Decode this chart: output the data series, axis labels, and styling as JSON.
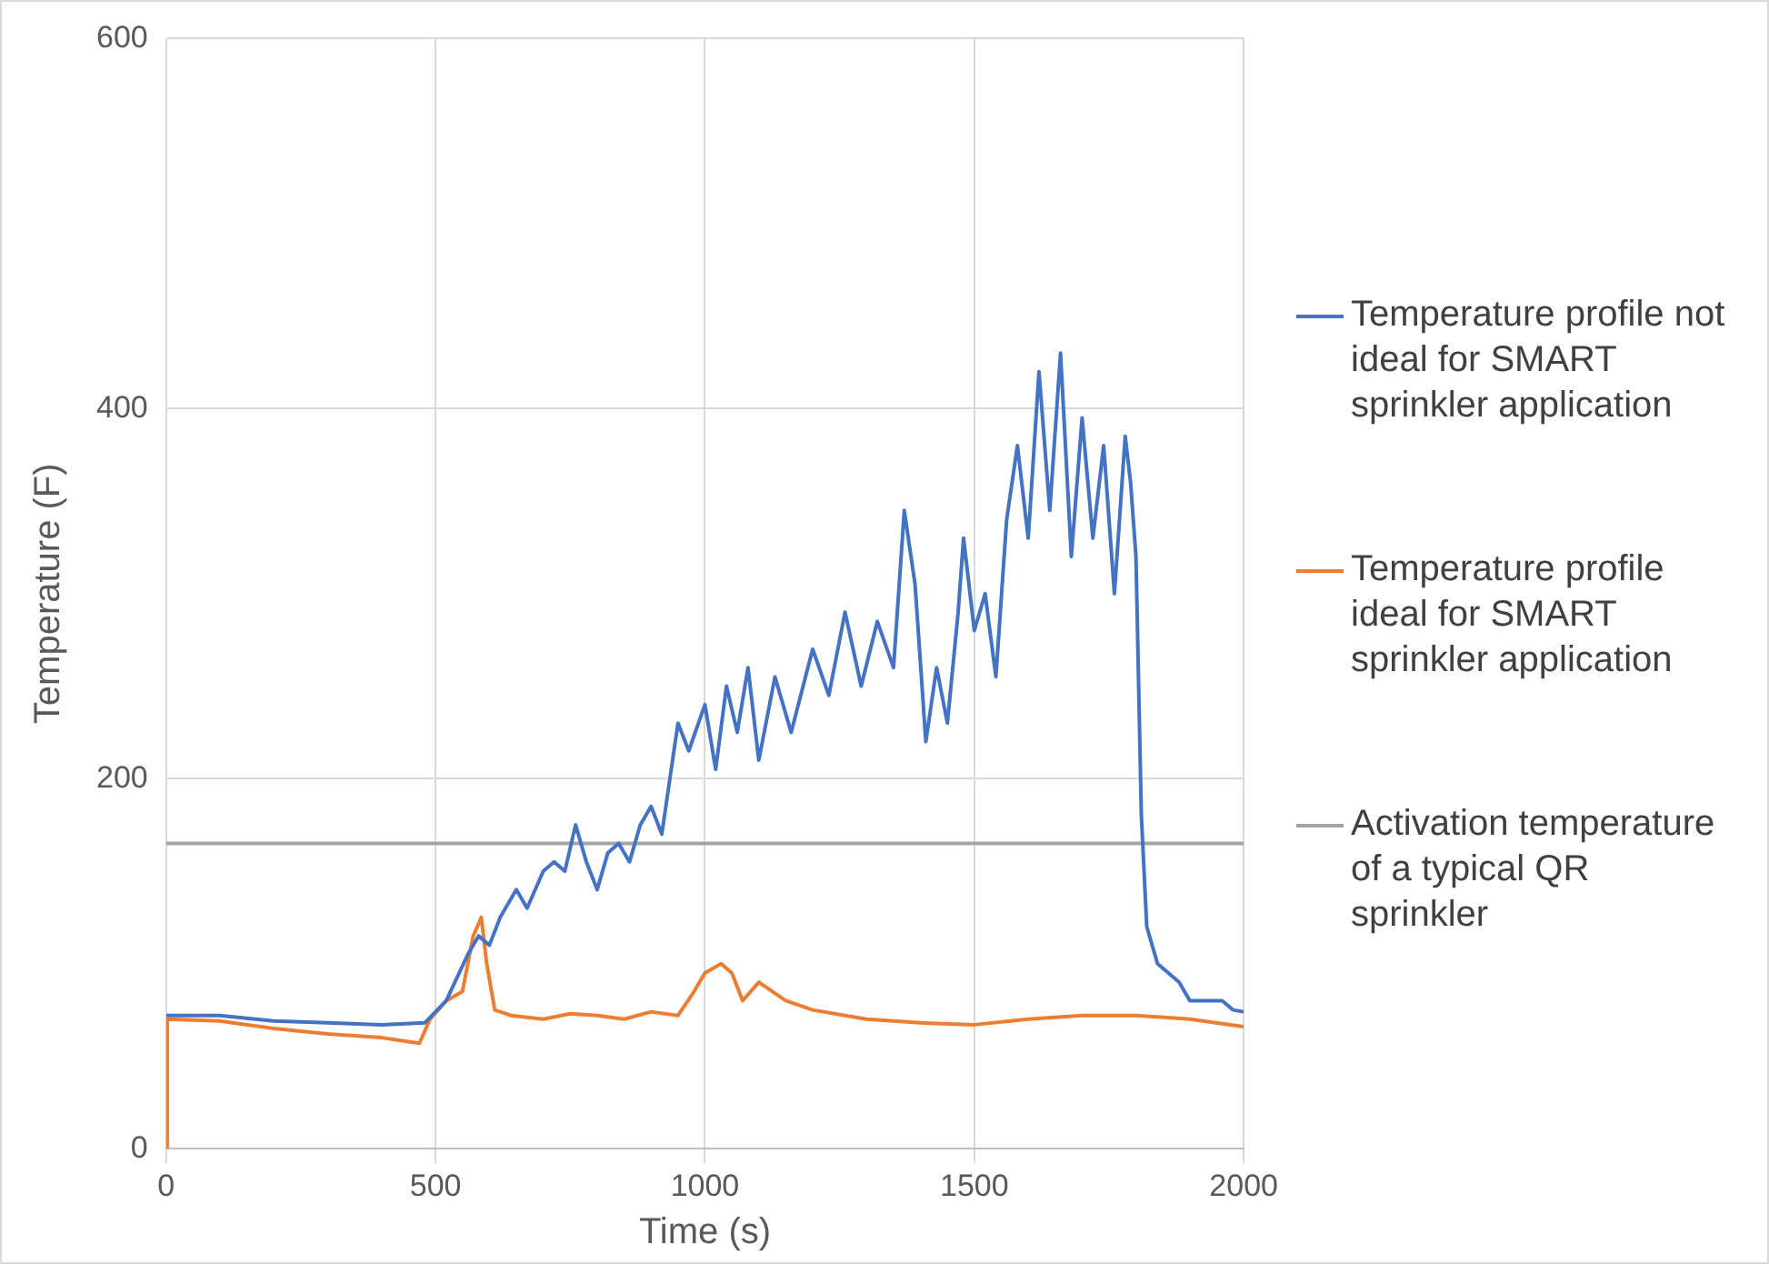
{
  "chart_data": {
    "type": "line",
    "xlabel": "Time (s)",
    "ylabel": "Temperature (F)",
    "xlim": [
      0,
      2000
    ],
    "xticks": [
      0,
      500,
      1000,
      1500,
      2000
    ],
    "ylim": [
      0,
      600
    ],
    "yticks": [
      0,
      200,
      400,
      600
    ],
    "grid": true,
    "legend": "right",
    "marker": "none",
    "line_style": "solid",
    "series": [
      {
        "name": "Temperature profile not ideal for SMART sprinkler application",
        "color": "#4472c4",
        "x": [
          0,
          100,
          200,
          300,
          400,
          480,
          520,
          560,
          580,
          600,
          620,
          650,
          670,
          700,
          720,
          740,
          760,
          780,
          800,
          820,
          840,
          860,
          880,
          900,
          920,
          950,
          970,
          1000,
          1020,
          1040,
          1060,
          1080,
          1100,
          1130,
          1160,
          1200,
          1230,
          1260,
          1290,
          1320,
          1350,
          1370,
          1390,
          1410,
          1430,
          1450,
          1470,
          1480,
          1500,
          1520,
          1540,
          1560,
          1580,
          1600,
          1620,
          1640,
          1660,
          1680,
          1700,
          1720,
          1740,
          1760,
          1780,
          1790,
          1800,
          1810,
          1820,
          1840,
          1880,
          1900,
          1960,
          1980,
          2000
        ],
        "values": [
          72,
          72,
          69,
          68,
          67,
          68,
          80,
          105,
          115,
          110,
          125,
          140,
          130,
          150,
          155,
          150,
          175,
          155,
          140,
          160,
          165,
          155,
          175,
          185,
          170,
          230,
          215,
          240,
          205,
          250,
          225,
          260,
          210,
          255,
          225,
          270,
          245,
          290,
          250,
          285,
          260,
          345,
          305,
          220,
          260,
          230,
          290,
          330,
          280,
          300,
          255,
          340,
          380,
          330,
          420,
          345,
          430,
          320,
          395,
          330,
          380,
          300,
          385,
          360,
          320,
          180,
          120,
          100,
          90,
          80,
          80,
          75,
          74
        ]
      },
      {
        "name": "Temperature profile ideal for SMART sprinkler application",
        "color": "#ed7d31",
        "x": [
          0,
          2,
          100,
          200,
          300,
          400,
          470,
          490,
          520,
          550,
          570,
          585,
          595,
          610,
          640,
          700,
          750,
          800,
          850,
          900,
          950,
          980,
          1000,
          1030,
          1050,
          1070,
          1100,
          1150,
          1200,
          1300,
          1400,
          1500,
          1600,
          1700,
          1800,
          1900,
          2000
        ],
        "values": [
          0,
          70,
          69,
          65,
          62,
          60,
          57,
          70,
          80,
          85,
          115,
          125,
          100,
          75,
          72,
          70,
          73,
          72,
          70,
          74,
          72,
          85,
          95,
          100,
          95,
          80,
          90,
          80,
          75,
          70,
          68,
          67,
          70,
          72,
          72,
          70,
          66
        ]
      },
      {
        "name": "Activation temperature of a typical QR sprinkler",
        "color": "#a5a5a5",
        "x": [
          0,
          2000
        ],
        "values": [
          165,
          165
        ]
      }
    ]
  }
}
